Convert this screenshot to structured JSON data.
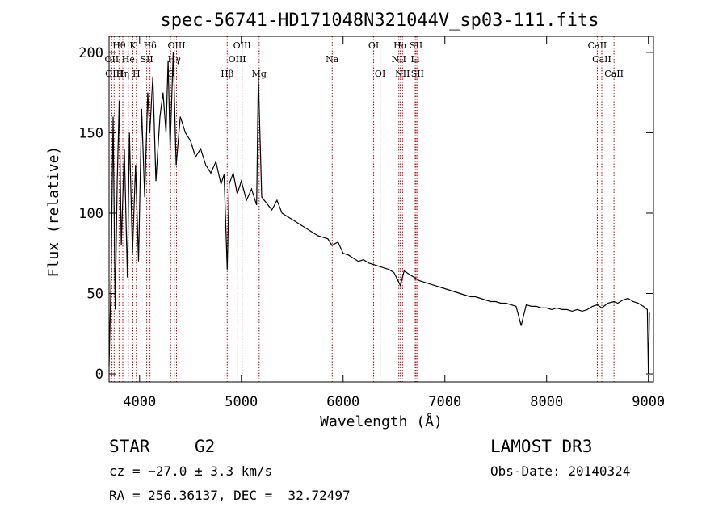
{
  "chart_data": {
    "type": "line",
    "title": "spec-56741-HD171048N321044V_sp03-111.fits",
    "xlabel": "Wavelength (Å)",
    "ylabel": "Flux (relative)",
    "xlim": [
      3700,
      9050
    ],
    "ylim": [
      -5,
      210
    ],
    "xticks": [
      4000,
      5000,
      6000,
      7000,
      8000,
      9000
    ],
    "yticks": [
      0,
      50,
      100,
      150,
      200
    ],
    "series": [
      {
        "name": "flux",
        "x": [
          3700,
          3720,
          3740,
          3760,
          3780,
          3800,
          3820,
          3850,
          3880,
          3900,
          3930,
          3960,
          3990,
          4020,
          4050,
          4080,
          4100,
          4130,
          4160,
          4200,
          4230,
          4260,
          4280,
          4300,
          4330,
          4360,
          4400,
          4450,
          4500,
          4550,
          4600,
          4650,
          4700,
          4750,
          4800,
          4830,
          4861,
          4880,
          4920,
          4960,
          5000,
          5050,
          5100,
          5150,
          5167,
          5200,
          5250,
          5300,
          5350,
          5400,
          5450,
          5500,
          5550,
          5600,
          5650,
          5700,
          5750,
          5800,
          5850,
          5890,
          5950,
          6000,
          6050,
          6100,
          6150,
          6200,
          6250,
          6300,
          6350,
          6400,
          6450,
          6500,
          6563,
          6600,
          6650,
          6700,
          6750,
          6800,
          6850,
          6900,
          6950,
          7000,
          7050,
          7100,
          7150,
          7200,
          7250,
          7300,
          7350,
          7400,
          7450,
          7500,
          7550,
          7600,
          7650,
          7700,
          7750,
          7800,
          7850,
          7900,
          7950,
          8000,
          8050,
          8100,
          8150,
          8200,
          8250,
          8300,
          8350,
          8400,
          8450,
          8500,
          8542,
          8600,
          8662,
          8700,
          8750,
          8800,
          8850,
          8900,
          8950,
          8990,
          9000,
          9010
        ],
        "values": [
          5,
          60,
          160,
          40,
          120,
          170,
          80,
          140,
          60,
          150,
          75,
          130,
          70,
          165,
          110,
          175,
          150,
          185,
          120,
          160,
          175,
          150,
          195,
          140,
          200,
          130,
          160,
          150,
          145,
          135,
          140,
          130,
          125,
          132,
          118,
          124,
          65,
          118,
          125,
          112,
          120,
          108,
          115,
          105,
          185,
          110,
          106,
          102,
          108,
          100,
          98,
          96,
          94,
          92,
          90,
          88,
          86,
          85,
          84,
          80,
          82,
          75,
          74,
          72,
          70,
          71,
          69,
          68,
          67,
          66,
          65,
          63,
          55,
          64,
          62,
          60,
          58,
          57,
          56,
          55,
          54,
          53,
          52,
          51,
          50,
          49,
          48,
          48,
          47,
          46,
          45,
          45,
          44,
          44,
          43,
          42,
          30,
          43,
          42,
          42,
          41,
          41,
          40,
          41,
          40,
          40,
          39,
          40,
          39,
          40,
          42,
          43,
          41,
          44,
          45,
          44,
          46,
          47,
          45,
          44,
          42,
          40,
          0,
          38
        ]
      }
    ],
    "spectral_lines": [
      {
        "label": "Hθ",
        "wl": 3798,
        "row": 0
      },
      {
        "label": "K",
        "wl": 3934,
        "row": 0
      },
      {
        "label": "Hδ",
        "wl": 4102,
        "row": 0
      },
      {
        "label": "OIII",
        "wl": 4363,
        "row": 0
      },
      {
        "label": "OIII",
        "wl": 5007,
        "row": 0
      },
      {
        "label": "OI",
        "wl": 6300,
        "row": 0
      },
      {
        "label": "Hα",
        "wl": 6563,
        "row": 0
      },
      {
        "label": "SII",
        "wl": 6717,
        "row": 0
      },
      {
        "label": "CaII",
        "wl": 8498,
        "row": 0
      },
      {
        "label": "OII",
        "wl": 3727,
        "row": 1
      },
      {
        "label": "He",
        "wl": 3889,
        "row": 1
      },
      {
        "label": "SII",
        "wl": 4070,
        "row": 1
      },
      {
        "label": "Hγ",
        "wl": 4341,
        "row": 1
      },
      {
        "label": "OIII",
        "wl": 4959,
        "row": 1
      },
      {
        "label": "Na",
        "wl": 5893,
        "row": 1
      },
      {
        "label": "NII",
        "wl": 6548,
        "row": 1
      },
      {
        "label": "Li",
        "wl": 6708,
        "row": 1
      },
      {
        "label": "CaII",
        "wl": 8542,
        "row": 1
      },
      {
        "label": "OIII",
        "wl": 3750,
        "row": 2
      },
      {
        "label": "Hη",
        "wl": 3835,
        "row": 2
      },
      {
        "label": "H",
        "wl": 3968,
        "row": 2
      },
      {
        "label": "G",
        "wl": 4305,
        "row": 2
      },
      {
        "label": "Hβ",
        "wl": 4861,
        "row": 2
      },
      {
        "label": "Mg",
        "wl": 5175,
        "row": 2
      },
      {
        "label": "OI",
        "wl": 6364,
        "row": 2
      },
      {
        "label": "NII",
        "wl": 6584,
        "row": 2
      },
      {
        "label": "SII",
        "wl": 6731,
        "row": 2
      },
      {
        "label": "CaII",
        "wl": 8662,
        "row": 2
      }
    ]
  },
  "info": {
    "object_class": "STAR",
    "subclass": "G2",
    "survey": "LAMOST DR3",
    "cz": "cz = −27.0 ± 3.3 km/s",
    "obs_date": "Obs-Date: 20140324",
    "coords": "RA = 256.36137, DEC =  32.72497"
  },
  "colors": {
    "line_marker": "#c00000",
    "spectrum": "#000000"
  }
}
